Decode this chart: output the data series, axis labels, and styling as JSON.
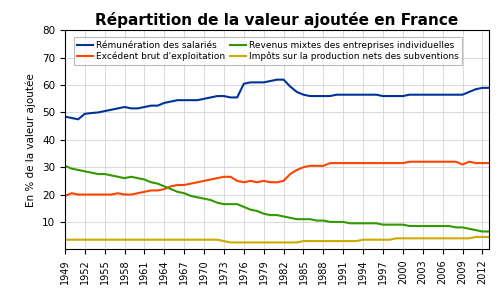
{
  "title": "Répartition de la valeur ajoutée en France",
  "ylabel": "En % de la valeur ajoutée",
  "ylim": [
    0,
    80
  ],
  "yticks": [
    10,
    20,
    30,
    40,
    50,
    60,
    70,
    80
  ],
  "background_color": "#ffffff",
  "grid_color": "#cccccc",
  "years": [
    1949,
    1950,
    1951,
    1952,
    1953,
    1954,
    1955,
    1956,
    1957,
    1958,
    1959,
    1960,
    1961,
    1962,
    1963,
    1964,
    1965,
    1966,
    1967,
    1968,
    1969,
    1970,
    1971,
    1972,
    1973,
    1974,
    1975,
    1976,
    1977,
    1978,
    1979,
    1980,
    1981,
    1982,
    1983,
    1984,
    1985,
    1986,
    1987,
    1988,
    1989,
    1990,
    1991,
    1992,
    1993,
    1994,
    1995,
    1996,
    1997,
    1998,
    1999,
    2000,
    2001,
    2002,
    2003,
    2004,
    2005,
    2006,
    2007,
    2008,
    2009,
    2010,
    2011,
    2012,
    2013
  ],
  "remuneration": [
    48.5,
    48.0,
    47.5,
    49.5,
    49.8,
    50.0,
    50.5,
    51.0,
    51.5,
    52.0,
    51.5,
    51.5,
    52.0,
    52.5,
    52.5,
    53.5,
    54.0,
    54.5,
    54.5,
    54.5,
    54.5,
    55.0,
    55.5,
    56.0,
    56.0,
    55.5,
    55.5,
    60.5,
    61.0,
    61.0,
    61.0,
    61.5,
    62.0,
    62.0,
    59.5,
    57.5,
    56.5,
    56.0,
    56.0,
    56.0,
    56.0,
    56.5,
    56.5,
    56.5,
    56.5,
    56.5,
    56.5,
    56.5,
    56.0,
    56.0,
    56.0,
    56.0,
    56.5,
    56.5,
    56.5,
    56.5,
    56.5,
    56.5,
    56.5,
    56.5,
    56.5,
    57.5,
    58.5,
    59.0,
    59.0
  ],
  "excedent": [
    19.5,
    20.5,
    20.0,
    20.0,
    20.0,
    20.0,
    20.0,
    20.0,
    20.5,
    20.0,
    20.0,
    20.5,
    21.0,
    21.5,
    21.5,
    22.0,
    23.0,
    23.5,
    23.5,
    24.0,
    24.5,
    25.0,
    25.5,
    26.0,
    26.5,
    26.5,
    25.0,
    24.5,
    25.0,
    24.5,
    25.0,
    24.5,
    24.5,
    25.0,
    27.5,
    29.0,
    30.0,
    30.5,
    30.5,
    30.5,
    31.5,
    31.5,
    31.5,
    31.5,
    31.5,
    31.5,
    31.5,
    31.5,
    31.5,
    31.5,
    31.5,
    31.5,
    32.0,
    32.0,
    32.0,
    32.0,
    32.0,
    32.0,
    32.0,
    32.0,
    31.0,
    32.0,
    31.5,
    31.5,
    31.5
  ],
  "revenus_mixtes": [
    30.5,
    29.5,
    29.0,
    28.5,
    28.0,
    27.5,
    27.5,
    27.0,
    26.5,
    26.0,
    26.5,
    26.0,
    25.5,
    24.5,
    24.0,
    23.0,
    22.0,
    21.0,
    20.5,
    19.5,
    19.0,
    18.5,
    18.0,
    17.0,
    16.5,
    16.5,
    16.5,
    15.5,
    14.5,
    14.0,
    13.0,
    12.5,
    12.5,
    12.0,
    11.5,
    11.0,
    11.0,
    11.0,
    10.5,
    10.5,
    10.0,
    10.0,
    10.0,
    9.5,
    9.5,
    9.5,
    9.5,
    9.5,
    9.0,
    9.0,
    9.0,
    9.0,
    8.5,
    8.5,
    8.5,
    8.5,
    8.5,
    8.5,
    8.5,
    8.0,
    8.0,
    7.5,
    7.0,
    6.5,
    6.5
  ],
  "impots": [
    3.5,
    3.5,
    3.5,
    3.5,
    3.5,
    3.5,
    3.5,
    3.5,
    3.5,
    3.5,
    3.5,
    3.5,
    3.5,
    3.5,
    3.5,
    3.5,
    3.5,
    3.5,
    3.5,
    3.5,
    3.5,
    3.5,
    3.5,
    3.5,
    3.0,
    2.5,
    2.5,
    2.5,
    2.5,
    2.5,
    2.5,
    2.5,
    2.5,
    2.5,
    2.5,
    2.5,
    3.0,
    3.0,
    3.0,
    3.0,
    3.0,
    3.0,
    3.0,
    3.0,
    3.0,
    3.5,
    3.5,
    3.5,
    3.5,
    3.5,
    4.0,
    4.0,
    4.0,
    4.0,
    4.0,
    4.0,
    4.0,
    4.0,
    4.0,
    4.0,
    4.0,
    4.0,
    4.5,
    4.5,
    4.5
  ],
  "line_colors": {
    "remuneration": "#003399",
    "excedent": "#ff4400",
    "revenus_mixtes": "#339900",
    "impots": "#ccaa00"
  },
  "legend_labels": {
    "remuneration": "Rémunération des salariés",
    "excedent": "Excédent brut d'exploitation",
    "revenus_mixtes": "Revenus mixtes des entreprises individuelles",
    "impots": "Impôts sur la production nets des subventions"
  },
  "xtick_years": [
    1949,
    1952,
    1955,
    1958,
    1961,
    1964,
    1967,
    1970,
    1973,
    1976,
    1979,
    1982,
    1985,
    1988,
    1991,
    1994,
    1997,
    2000,
    2003,
    2006,
    2009,
    2012
  ],
  "title_fontsize": 11,
  "ylabel_fontsize": 7.5,
  "tick_fontsize": 7.5,
  "xtick_fontsize": 7,
  "legend_fontsize": 6.5,
  "linewidth": 1.5
}
